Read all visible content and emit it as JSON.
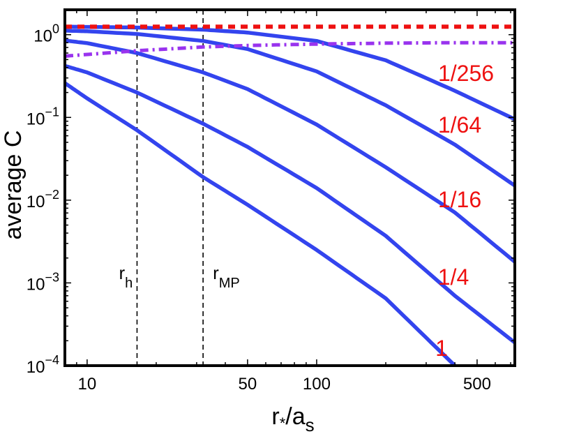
{
  "chart_data": {
    "type": "line",
    "title": "",
    "xlabel": {
      "main": "r",
      "sub": "*",
      "mid": "/a",
      "sub2": "s"
    },
    "ylabel": "average C",
    "x_scale": "log",
    "y_scale": "log",
    "xlim": [
      8,
      730
    ],
    "ylim": [
      0.0001,
      2
    ],
    "x_ticks": [
      {
        "value": 10,
        "label": "10"
      },
      {
        "value": 50,
        "label": "50"
      },
      {
        "value": 100,
        "label": "100"
      },
      {
        "value": 500,
        "label": "500"
      }
    ],
    "y_ticks": [
      {
        "value": 1,
        "base": "10",
        "exp": "0"
      },
      {
        "value": 0.1,
        "base": "10",
        "exp": "−1"
      },
      {
        "value": 0.01,
        "base": "10",
        "exp": "−2"
      },
      {
        "value": 0.001,
        "base": "10",
        "exp": "−3"
      },
      {
        "value": 0.0001,
        "base": "10",
        "exp": "−4"
      }
    ],
    "grid": false,
    "colors": {
      "curves": "#3344ee",
      "dashed": "#ee1111",
      "dashdot": "#9933ee",
      "labels": "#ee1111",
      "ref_lines": "#000000"
    },
    "reference_lines": [
      {
        "x": 16.5,
        "label_main": "r",
        "label_sub": "h"
      },
      {
        "x": 32,
        "label_main": "r",
        "label_sub": "MP"
      }
    ],
    "series": [
      {
        "label": "1",
        "x": [
          8,
          10,
          16.5,
          32,
          50,
          100,
          200,
          400
        ],
        "y": [
          0.26,
          0.17,
          0.07,
          0.019,
          0.0088,
          0.0025,
          0.00065,
          0.0001
        ]
      },
      {
        "label": "1/4",
        "x": [
          8,
          10,
          16.5,
          32,
          50,
          100,
          200,
          400,
          730
        ],
        "y": [
          0.42,
          0.35,
          0.2,
          0.084,
          0.044,
          0.014,
          0.0037,
          0.0007,
          0.00019
        ]
      },
      {
        "label": "1/16",
        "x": [
          8,
          10,
          16.5,
          32,
          50,
          100,
          200,
          400,
          730
        ],
        "y": [
          0.85,
          0.79,
          0.6,
          0.35,
          0.22,
          0.082,
          0.025,
          0.0071,
          0.0018
        ]
      },
      {
        "label": "1/64",
        "x": [
          8,
          10,
          16.5,
          32,
          50,
          100,
          200,
          400,
          730
        ],
        "y": [
          1.12,
          1.1,
          1.02,
          0.84,
          0.67,
          0.36,
          0.14,
          0.047,
          0.015
        ]
      },
      {
        "label": "1/256",
        "x": [
          8,
          10,
          16.5,
          32,
          50,
          100,
          200,
          400,
          730
        ],
        "y": [
          1.25,
          1.24,
          1.22,
          1.15,
          1.06,
          0.84,
          0.49,
          0.21,
          0.095
        ]
      },
      {
        "label": "",
        "style": "dashed",
        "x": [
          8,
          730
        ],
        "y": [
          1.25,
          1.25
        ]
      },
      {
        "label": "",
        "style": "dashdot",
        "x": [
          8,
          16.5,
          32,
          50,
          100,
          200,
          400,
          730
        ],
        "y": [
          0.55,
          0.64,
          0.71,
          0.74,
          0.77,
          0.79,
          0.8,
          0.8
        ]
      }
    ],
    "curve_label_positions_note": ""
  }
}
